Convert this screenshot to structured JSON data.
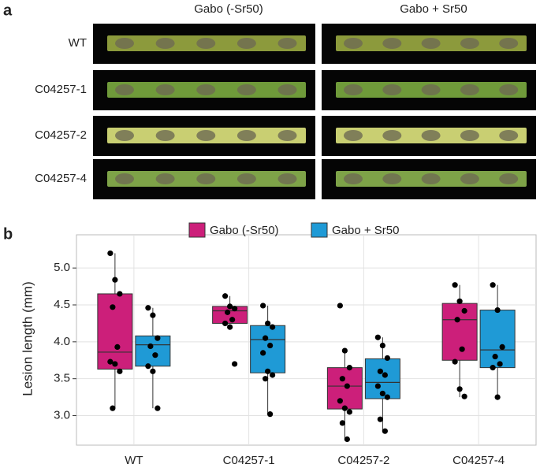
{
  "panel_a": {
    "label": "a",
    "columns": [
      "Gabo (-Sr50)",
      "Gabo + Sr50"
    ],
    "rows": [
      "WT",
      "C04257-1",
      "C04257-2",
      "C04257-4"
    ]
  },
  "chart_data": {
    "type": "box",
    "panel_label": "b",
    "y_label": "Lesion length (mm)",
    "categories": [
      "WT",
      "C04257-1",
      "C04257-2",
      "C04257-4"
    ],
    "ylim": [
      2.6,
      5.45
    ],
    "yticks": [
      {
        "value": 3,
        "label": "3.0"
      },
      {
        "value": 3.5,
        "label": "3.5"
      },
      {
        "value": 4,
        "label": "4.0"
      },
      {
        "value": 4.5,
        "label": "4.5"
      },
      {
        "value": 5,
        "label": "5.0"
      }
    ],
    "grid": true,
    "legend": "top",
    "series": [
      {
        "name": "Gabo (-Sr50)",
        "color": "#cc1f7a",
        "values": [
          {
            "whislo": 3.1,
            "q1": 3.63,
            "med": 3.86,
            "q3": 4.65,
            "whishi": 5.2,
            "points": [
              5.2,
              4.84,
              4.65,
              4.47,
              3.93,
              3.73,
              3.7,
              3.6,
              3.1
            ]
          },
          {
            "whislo": 4.25,
            "q1": 4.25,
            "med": 4.42,
            "q3": 4.48,
            "whishi": 4.62,
            "points": [
              4.62,
              4.48,
              4.45,
              4.4,
              4.3,
              4.25,
              4.2,
              3.7
            ]
          },
          {
            "whislo": 2.68,
            "q1": 3.09,
            "med": 3.4,
            "q3": 3.65,
            "whishi": 3.88,
            "points": [
              4.49,
              3.88,
              3.65,
              3.5,
              3.4,
              3.2,
              3.1,
              3.05,
              2.9,
              2.68
            ]
          },
          {
            "whislo": 3.25,
            "q1": 3.75,
            "med": 4.3,
            "q3": 4.52,
            "whishi": 4.77,
            "points": [
              4.77,
              4.55,
              4.42,
              4.3,
              3.9,
              3.73,
              3.36,
              3.26
            ]
          }
        ]
      },
      {
        "name": "Gabo + Sr50",
        "color": "#1f9ad6",
        "values": [
          {
            "whislo": 3.1,
            "q1": 3.67,
            "med": 3.96,
            "q3": 4.08,
            "whishi": 4.46,
            "points": [
              4.46,
              4.36,
              4.05,
              3.94,
              3.82,
              3.67,
              3.6,
              3.1
            ]
          },
          {
            "whislo": 3.02,
            "q1": 3.58,
            "med": 4.03,
            "q3": 4.22,
            "whishi": 4.49,
            "points": [
              4.49,
              4.25,
              4.2,
              4.05,
              3.95,
              3.85,
              3.6,
              3.55,
              3.5,
              3.02
            ]
          },
          {
            "whislo": 2.79,
            "q1": 3.23,
            "med": 3.45,
            "q3": 3.77,
            "whishi": 4.06,
            "points": [
              4.06,
              3.95,
              3.78,
              3.6,
              3.55,
              3.4,
              3.3,
              3.25,
              2.95,
              2.79
            ]
          },
          {
            "whislo": 3.25,
            "q1": 3.65,
            "med": 3.89,
            "q3": 4.43,
            "whishi": 4.77,
            "points": [
              4.77,
              4.43,
              3.93,
              3.8,
              3.7,
              3.65,
              3.25
            ]
          }
        ]
      }
    ]
  }
}
